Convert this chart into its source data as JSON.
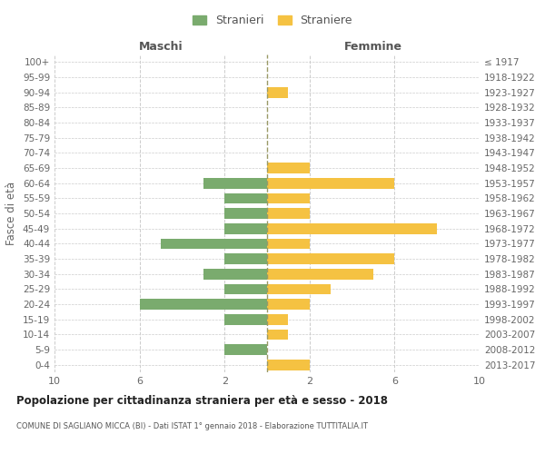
{
  "age_groups": [
    "100+",
    "95-99",
    "90-94",
    "85-89",
    "80-84",
    "75-79",
    "70-74",
    "65-69",
    "60-64",
    "55-59",
    "50-54",
    "45-49",
    "40-44",
    "35-39",
    "30-34",
    "25-29",
    "20-24",
    "15-19",
    "10-14",
    "5-9",
    "0-4"
  ],
  "birth_years": [
    "≤ 1917",
    "1918-1922",
    "1923-1927",
    "1928-1932",
    "1933-1937",
    "1938-1942",
    "1943-1947",
    "1948-1952",
    "1953-1957",
    "1958-1962",
    "1963-1967",
    "1968-1972",
    "1973-1977",
    "1978-1982",
    "1983-1987",
    "1988-1992",
    "1993-1997",
    "1998-2002",
    "2003-2007",
    "2008-2012",
    "2013-2017"
  ],
  "males": [
    0,
    0,
    0,
    0,
    0,
    0,
    0,
    0,
    3,
    2,
    2,
    2,
    5,
    2,
    3,
    2,
    6,
    2,
    0,
    2,
    0
  ],
  "females": [
    0,
    0,
    1,
    0,
    0,
    0,
    0,
    2,
    6,
    2,
    2,
    8,
    2,
    6,
    5,
    3,
    2,
    1,
    1,
    0,
    2
  ],
  "male_color": "#7aab6e",
  "female_color": "#f5c242",
  "background_color": "#ffffff",
  "grid_color": "#cccccc",
  "center_line_color": "#999966",
  "title": "Popolazione per cittadinanza straniera per età e sesso - 2018",
  "subtitle": "COMUNE DI SAGLIANO MICCA (BI) - Dati ISTAT 1° gennaio 2018 - Elaborazione TUTTITALIA.IT",
  "ylabel_left": "Fasce di età",
  "xlabel_male": "Maschi",
  "xlabel_female": "Femmine",
  "legend_male": "Stranieri",
  "legend_female": "Straniere",
  "xlim": 10
}
